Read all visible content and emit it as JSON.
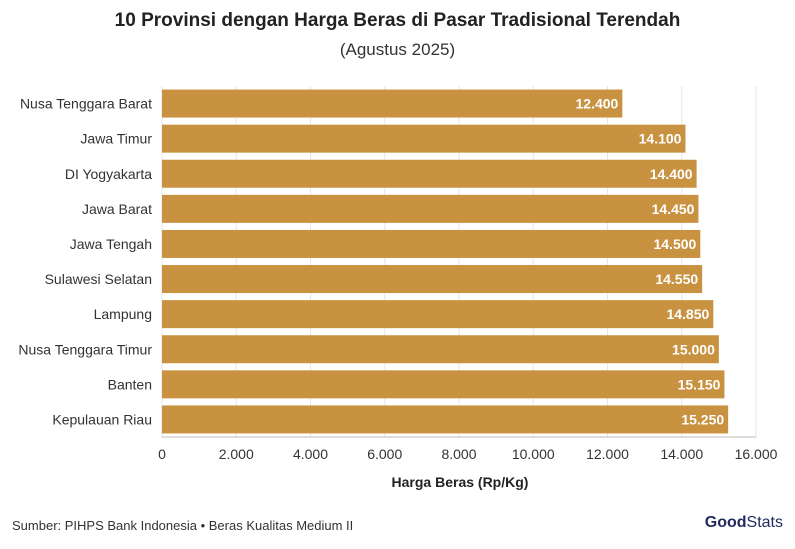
{
  "chart_data": {
    "type": "bar",
    "orientation": "horizontal",
    "title": "10 Provinsi dengan Harga Beras di Pasar Tradisional Terendah",
    "subtitle": "(Agustus 2025)",
    "xlabel": "Harga Beras (Rp/Kg)",
    "ylabel": "",
    "categories": [
      "Nusa Tenggara Barat",
      "Jawa Timur",
      "DI Yogyakarta",
      "Jawa Barat",
      "Jawa Tengah",
      "Sulawesi Selatan",
      "Lampung",
      "Nusa Tenggara Timur",
      "Banten",
      "Kepulauan Riau"
    ],
    "values": [
      12400,
      14100,
      14400,
      14450,
      14500,
      14550,
      14850,
      15000,
      15150,
      15250
    ],
    "value_labels": [
      "12.400",
      "14.100",
      "14.400",
      "14.450",
      "14.500",
      "14.550",
      "14.850",
      "15.000",
      "15.150",
      "15.250"
    ],
    "xlim": [
      0,
      16000
    ],
    "xticks": [
      0,
      2000,
      4000,
      6000,
      8000,
      10000,
      12000,
      14000,
      16000
    ],
    "xtick_labels": [
      "0",
      "2.000",
      "4.000",
      "6.000",
      "8.000",
      "10.000",
      "12.000",
      "14.000",
      "16.000"
    ],
    "grid": true,
    "bar_color": "#c99240"
  },
  "footer": {
    "source": "Sumber: PIHPS Bank Indonesia • Beras Kualitas Medium II",
    "logo_good": "Good",
    "logo_stats": "Stats"
  }
}
